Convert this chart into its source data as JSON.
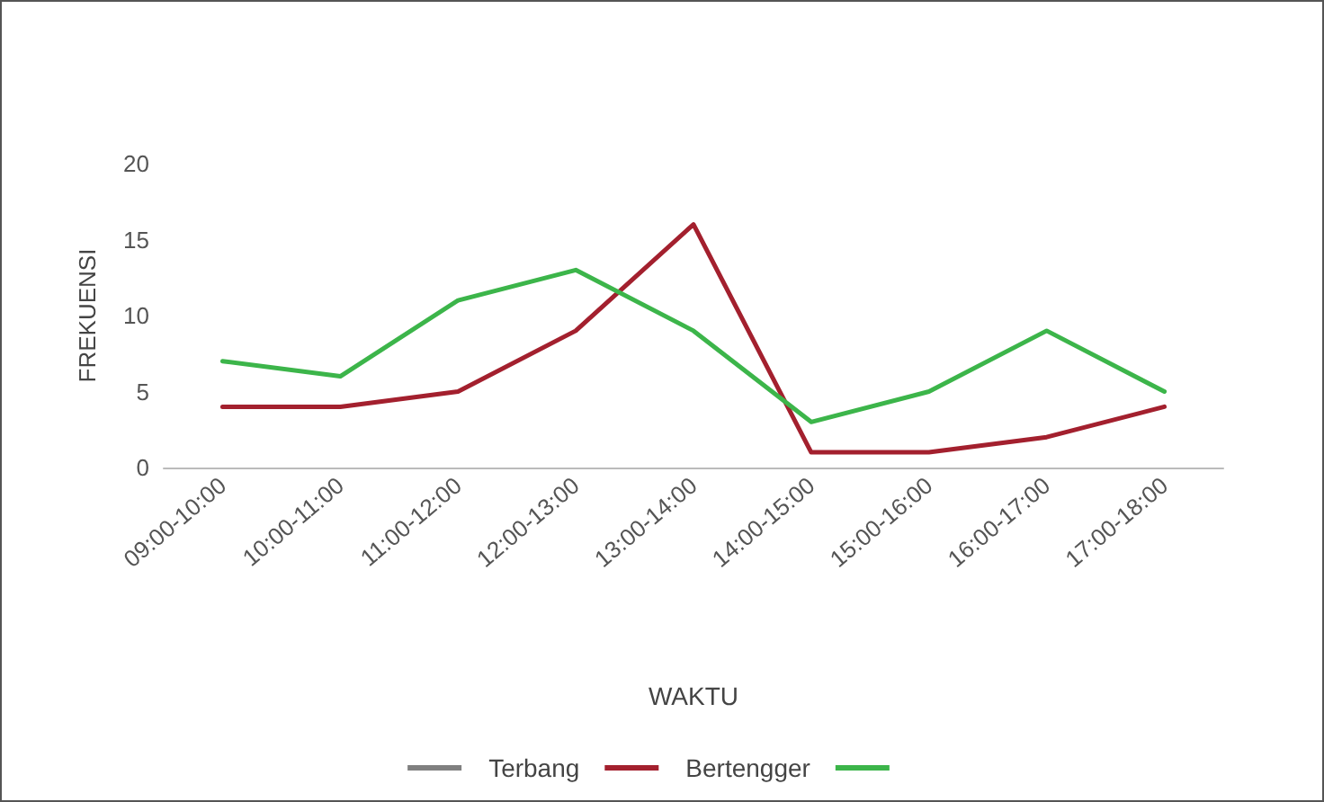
{
  "chart_data": {
    "type": "line",
    "xlabel": "WAKTU",
    "ylabel": "FREKUENSI",
    "categories": [
      "09:00-10:00",
      "10:00-11:00",
      "11:00-12:00",
      "12:00-13:00",
      "13:00-14:00",
      "14:00-15:00",
      "15:00-16:00",
      "16:00-17:00",
      "17:00-18:00"
    ],
    "series": [
      {
        "name": "Terbang",
        "color": "#808080",
        "values": [
          null,
          null,
          null,
          null,
          null,
          null,
          null,
          null,
          null
        ]
      },
      {
        "name": "Bertengger",
        "color": "#a3202e",
        "values": [
          4,
          4,
          5,
          9,
          16,
          1,
          1,
          2,
          4
        ]
      },
      {
        "color": "#3cb54a",
        "values": [
          7,
          6,
          11,
          13,
          9,
          3,
          5,
          9,
          5
        ]
      }
    ],
    "ylim": [
      0,
      20
    ],
    "yticks": [
      0,
      5,
      10,
      15,
      20
    ],
    "grid": false,
    "legend": "bottom",
    "marker": "none",
    "line_style": "solid"
  }
}
